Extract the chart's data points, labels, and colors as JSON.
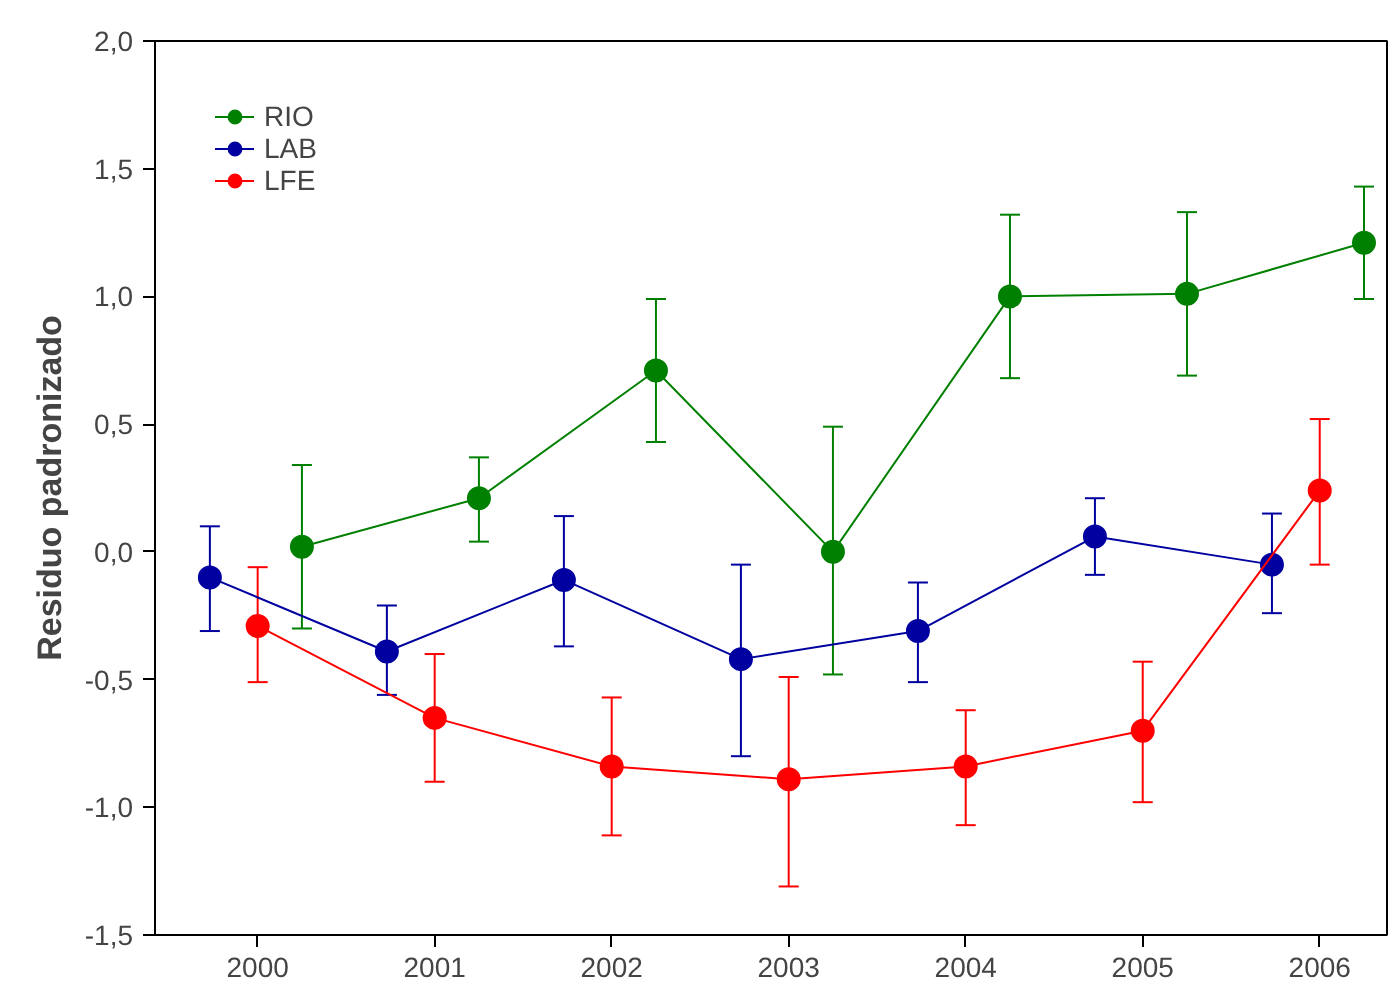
{
  "chart_data": {
    "type": "line",
    "ylabel": "Residuo padronizado",
    "marker": "circle",
    "line_style": "solid",
    "grid": false,
    "legend": "top left",
    "xlim": [
      1999.42,
      2006.38
    ],
    "ylim": [
      -1.5,
      2.0
    ],
    "xticks": [
      2000,
      2001,
      2002,
      2003,
      2004,
      2005,
      2006
    ],
    "yticks": [
      {
        "value": -1.5,
        "label": "-1,5"
      },
      {
        "value": -1.0,
        "label": "-1,0"
      },
      {
        "value": -0.5,
        "label": "-0,5"
      },
      {
        "value": 0.0,
        "label": "0,0"
      },
      {
        "value": 0.5,
        "label": "0,5"
      },
      {
        "value": 1.0,
        "label": "1,0"
      },
      {
        "value": 1.5,
        "label": "1,5"
      },
      {
        "value": 2.0,
        "label": "2,0"
      }
    ],
    "series": [
      {
        "name": "RIO",
        "color": "#008000",
        "x": [
          2000.25,
          2001.25,
          2002.25,
          2003.25,
          2004.25,
          2005.25,
          2006.25
        ],
        "values": [
          0.02,
          0.21,
          0.71,
          0.0,
          1.0,
          1.01,
          1.21
        ],
        "errors": [
          [
            -0.3,
            0.34
          ],
          [
            0.04,
            0.37
          ],
          [
            0.43,
            0.99
          ],
          [
            -0.48,
            0.49
          ],
          [
            0.68,
            1.32
          ],
          [
            0.69,
            1.33
          ],
          [
            0.99,
            1.43
          ]
        ]
      },
      {
        "name": "LAB",
        "color": "#0000a0",
        "x": [
          1999.73,
          2000.73,
          2001.73,
          2002.73,
          2003.73,
          2004.73,
          2005.73
        ],
        "values": [
          -0.1,
          -0.39,
          -0.11,
          -0.42,
          -0.31,
          0.06,
          -0.05
        ],
        "errors": [
          [
            -0.31,
            0.1
          ],
          [
            -0.56,
            -0.21
          ],
          [
            -0.37,
            0.14
          ],
          [
            -0.8,
            -0.05
          ],
          [
            -0.51,
            -0.12
          ],
          [
            -0.09,
            0.21
          ],
          [
            -0.24,
            0.15
          ]
        ]
      },
      {
        "name": "LFE",
        "color": "#ff0000",
        "x": [
          2000,
          2001,
          2002,
          2003,
          2004,
          2005,
          2006
        ],
        "values": [
          -0.29,
          -0.65,
          -0.84,
          -0.89,
          -0.84,
          -0.7,
          0.24
        ],
        "errors": [
          [
            -0.51,
            -0.06
          ],
          [
            -0.9,
            -0.4
          ],
          [
            -1.11,
            -0.57
          ],
          [
            -1.31,
            -0.49
          ],
          [
            -1.07,
            -0.62
          ],
          [
            -0.98,
            -0.43
          ],
          [
            -0.05,
            0.52
          ]
        ]
      }
    ]
  }
}
